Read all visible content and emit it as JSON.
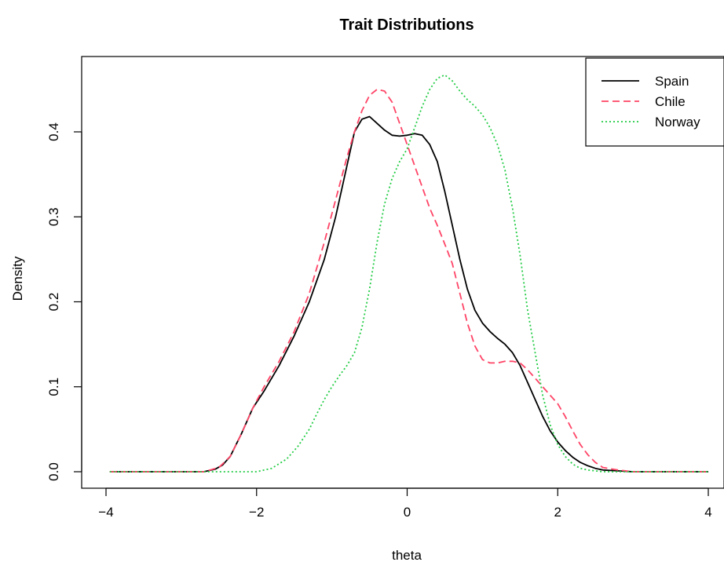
{
  "chart_data": {
    "type": "line",
    "title": "Trait Distributions",
    "xlabel": "theta",
    "ylabel": "Density",
    "xlim": [
      -4,
      4
    ],
    "ylim": [
      0,
      0.47
    ],
    "x_ticks": [
      "−4",
      "−2",
      "0",
      "2",
      "4"
    ],
    "x_tick_values": [
      -4,
      -2,
      0,
      2,
      4
    ],
    "y_ticks": [
      "0.0",
      "0.1",
      "0.2",
      "0.3",
      "0.4"
    ],
    "y_tick_values": [
      0,
      0.1,
      0.2,
      0.3,
      0.4
    ],
    "grid": false,
    "legend_position": "top-right",
    "series": [
      {
        "name": "Spain",
        "color": "#000000",
        "dash": "solid",
        "x": [
          -3.95,
          -3.0,
          -2.7,
          -2.55,
          -2.45,
          -2.35,
          -2.2,
          -2.05,
          -1.9,
          -1.7,
          -1.5,
          -1.3,
          -1.1,
          -0.95,
          -0.8,
          -0.7,
          -0.6,
          -0.5,
          -0.4,
          -0.3,
          -0.2,
          -0.1,
          0.0,
          0.1,
          0.2,
          0.3,
          0.4,
          0.5,
          0.6,
          0.7,
          0.8,
          0.9,
          1.0,
          1.1,
          1.2,
          1.3,
          1.4,
          1.5,
          1.6,
          1.7,
          1.8,
          1.9,
          2.0,
          2.1,
          2.2,
          2.3,
          2.4,
          2.5,
          2.6,
          2.8,
          3.0,
          3.5,
          4.0
        ],
        "y": [
          0.0,
          0.0,
          0.0,
          0.003,
          0.008,
          0.018,
          0.045,
          0.075,
          0.095,
          0.125,
          0.16,
          0.2,
          0.25,
          0.3,
          0.36,
          0.4,
          0.415,
          0.418,
          0.41,
          0.402,
          0.396,
          0.395,
          0.396,
          0.398,
          0.396,
          0.385,
          0.365,
          0.33,
          0.29,
          0.25,
          0.215,
          0.19,
          0.175,
          0.165,
          0.157,
          0.15,
          0.14,
          0.125,
          0.105,
          0.085,
          0.065,
          0.048,
          0.035,
          0.025,
          0.017,
          0.011,
          0.007,
          0.004,
          0.002,
          0.001,
          0.0,
          0.0,
          0.0
        ]
      },
      {
        "name": "Chile",
        "color": "#ff4466",
        "dash": "dashed",
        "x": [
          -3.95,
          -3.0,
          -2.7,
          -2.5,
          -2.35,
          -2.2,
          -2.05,
          -1.9,
          -1.7,
          -1.5,
          -1.3,
          -1.1,
          -0.95,
          -0.8,
          -0.7,
          -0.6,
          -0.5,
          -0.4,
          -0.3,
          -0.2,
          -0.1,
          0.0,
          0.1,
          0.2,
          0.3,
          0.4,
          0.5,
          0.6,
          0.7,
          0.8,
          0.9,
          1.0,
          1.1,
          1.2,
          1.3,
          1.4,
          1.5,
          1.6,
          1.7,
          1.8,
          1.9,
          2.0,
          2.1,
          2.2,
          2.3,
          2.4,
          2.5,
          2.6,
          2.8,
          3.0,
          3.5,
          4.0
        ],
        "y": [
          0.0,
          0.0,
          0.0,
          0.005,
          0.018,
          0.045,
          0.075,
          0.1,
          0.13,
          0.165,
          0.21,
          0.27,
          0.32,
          0.37,
          0.4,
          0.425,
          0.443,
          0.45,
          0.448,
          0.435,
          0.41,
          0.385,
          0.36,
          0.335,
          0.31,
          0.29,
          0.268,
          0.245,
          0.21,
          0.175,
          0.148,
          0.132,
          0.128,
          0.128,
          0.13,
          0.13,
          0.128,
          0.12,
          0.11,
          0.1,
          0.09,
          0.08,
          0.065,
          0.048,
          0.032,
          0.02,
          0.011,
          0.005,
          0.002,
          0.0,
          0.0,
          0.0
        ]
      },
      {
        "name": "Norway",
        "color": "#22cc44",
        "dash": "dotted",
        "x": [
          -3.95,
          -2.5,
          -2.0,
          -1.8,
          -1.6,
          -1.45,
          -1.3,
          -1.2,
          -1.1,
          -1.0,
          -0.9,
          -0.8,
          -0.7,
          -0.6,
          -0.5,
          -0.4,
          -0.3,
          -0.2,
          -0.1,
          0.0,
          0.1,
          0.2,
          0.3,
          0.4,
          0.5,
          0.6,
          0.7,
          0.8,
          0.9,
          1.0,
          1.1,
          1.2,
          1.3,
          1.4,
          1.5,
          1.6,
          1.7,
          1.8,
          1.9,
          2.0,
          2.1,
          2.2,
          2.3,
          2.4,
          2.5,
          2.6,
          2.8,
          3.0,
          3.5,
          4.0
        ],
        "y": [
          0.0,
          0.0,
          0.0,
          0.004,
          0.015,
          0.03,
          0.05,
          0.068,
          0.085,
          0.1,
          0.113,
          0.125,
          0.14,
          0.17,
          0.215,
          0.27,
          0.315,
          0.345,
          0.365,
          0.38,
          0.405,
          0.43,
          0.45,
          0.463,
          0.467,
          0.46,
          0.448,
          0.438,
          0.43,
          0.42,
          0.405,
          0.385,
          0.355,
          0.31,
          0.255,
          0.19,
          0.14,
          0.09,
          0.055,
          0.032,
          0.018,
          0.009,
          0.004,
          0.002,
          0.001,
          0.0,
          0.0,
          0.0,
          0.0,
          0.0
        ]
      }
    ]
  }
}
